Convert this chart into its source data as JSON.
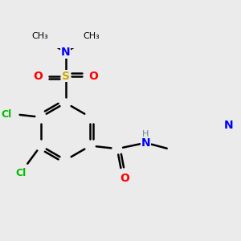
{
  "background_color": "#ebebeb",
  "bond_color": "#000000",
  "colors": {
    "C": "#000000",
    "N": "#0000ff",
    "O": "#ff0000",
    "S": "#ccaa00",
    "Cl": "#00bb00",
    "H": "#7f9f9f"
  }
}
